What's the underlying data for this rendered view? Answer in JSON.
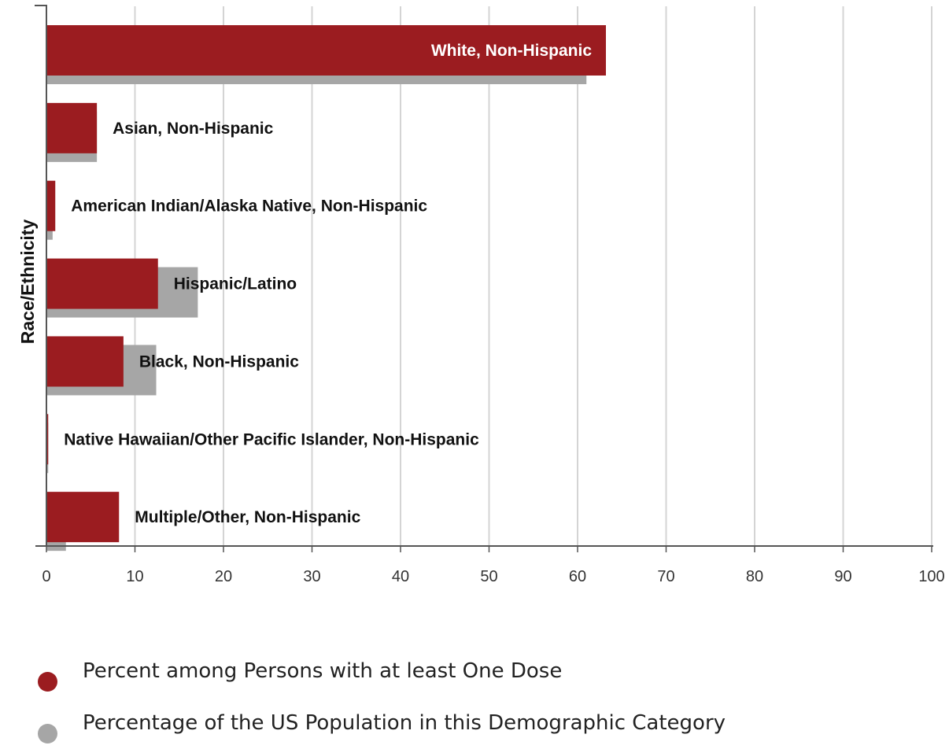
{
  "chart_data": {
    "type": "bar",
    "orientation": "horizontal",
    "ylabel": "Race/Ethnicity",
    "xlabel": "",
    "xlim": [
      0,
      100
    ],
    "xticks": [
      "0",
      "10",
      "20",
      "30",
      "40",
      "50",
      "60",
      "70",
      "80",
      "90",
      "100"
    ],
    "grid": true,
    "legend_position": "bottom",
    "categories": [
      "White, Non-Hispanic",
      "Asian, Non-Hispanic",
      "American Indian/Alaska Native, Non-Hispanic",
      "Hispanic/Latino",
      "Black, Non-Hispanic",
      "Native Hawaiian/Other Pacific Islander, Non-Hispanic",
      "Multiple/Other, Non-Hispanic"
    ],
    "series": [
      {
        "name": "Percent among Persons with at least One Dose",
        "color": "#9b1c20",
        "values": [
          63.2,
          5.7,
          1.0,
          12.6,
          8.7,
          0.2,
          8.2
        ]
      },
      {
        "name": "Percentage of the US Population in this Demographic Category",
        "color": "#a6a6a6",
        "values": [
          61.0,
          5.7,
          0.7,
          17.1,
          12.4,
          0.2,
          2.2
        ]
      }
    ]
  }
}
